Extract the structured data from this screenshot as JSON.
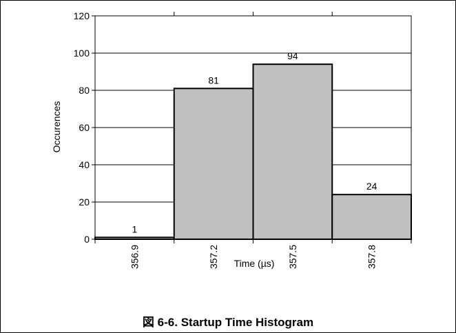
{
  "figure": {
    "caption_prefix": "図",
    "caption_number": "6-6.",
    "caption_title": "Startup Time Histogram"
  },
  "colors": {
    "bar_fill": "#c0c0c0",
    "bar_stroke": "#000000",
    "grid": "#000000",
    "background": "#ffffff"
  },
  "chart_data": {
    "type": "bar",
    "title": "",
    "xlabel": "Time (µs)",
    "ylabel": "Occurences",
    "categories": [
      "356.9",
      "357.2",
      "357.5",
      "357.8"
    ],
    "values": [
      1,
      81,
      94,
      24
    ],
    "data_labels": [
      "1",
      "81",
      "94",
      "24"
    ],
    "ylim": [
      0,
      120
    ],
    "yticks": [
      0,
      20,
      40,
      60,
      80,
      100,
      120
    ],
    "x_tick_label_rotation": "vertical",
    "grid": "horizontal",
    "legend": "none"
  }
}
